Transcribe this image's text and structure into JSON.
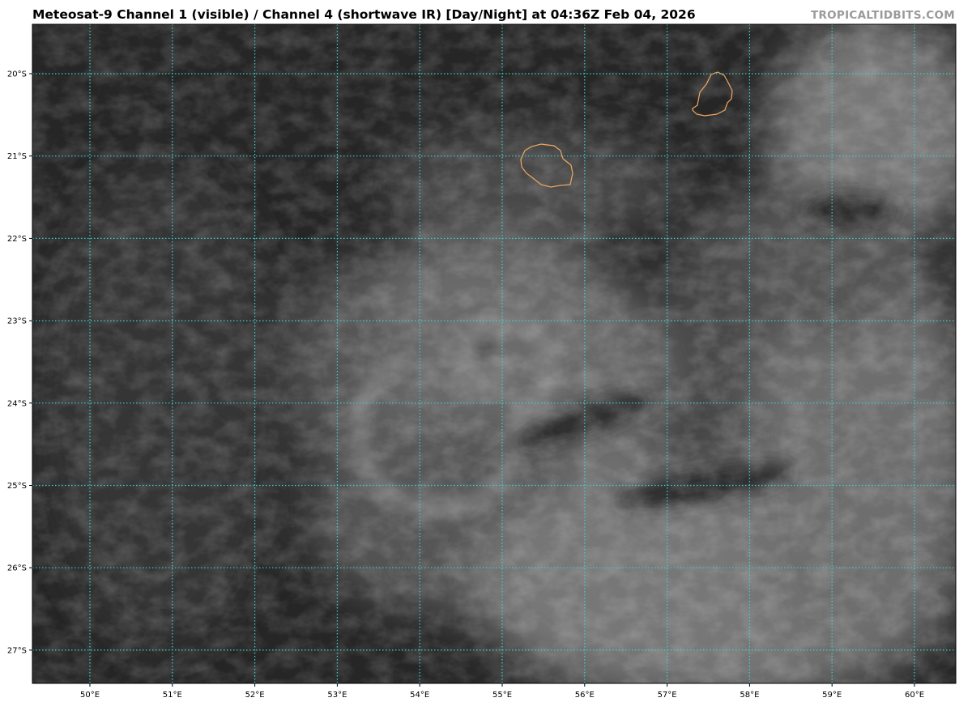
{
  "header": {
    "title": "Meteosat-9 Channel 1 (visible) / Channel 4 (shortwave IR) [Day/Night] at 04:36Z Feb 04, 2026",
    "watermark": "TROPICALTIDBITS.COM"
  },
  "map": {
    "latitude_labels": [
      "20°S",
      "21°S",
      "22°S",
      "23°S",
      "24°S",
      "25°S",
      "26°S",
      "27°S"
    ],
    "longitude_labels": [
      "50°E",
      "51°E",
      "52°E",
      "53°E",
      "54°E",
      "55°E",
      "56°E",
      "57°E",
      "58°E",
      "59°E",
      "60°E"
    ],
    "gridline_color": "#3fd0d0",
    "coastline_color": "#f0a860",
    "background_color": "#262626"
  }
}
